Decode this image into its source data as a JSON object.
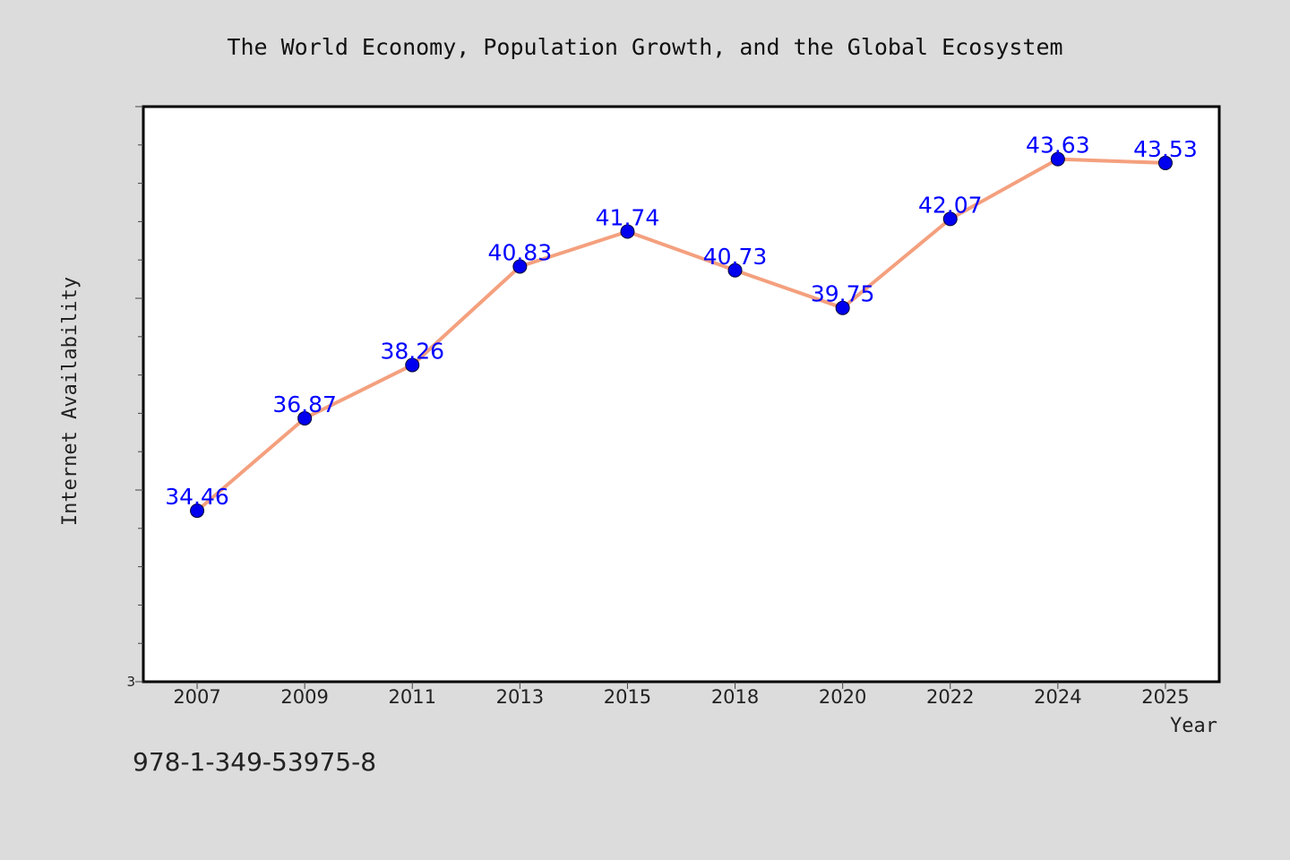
{
  "chart_data": {
    "type": "line",
    "title": "The World Economy, Population Growth, and the Global Ecosystem",
    "xlabel": "Year",
    "ylabel": "Internet Availability",
    "categories": [
      "2007",
      "2009",
      "2011",
      "2013",
      "2015",
      "2018",
      "2020",
      "2022",
      "2024",
      "2025"
    ],
    "series": [
      {
        "values": [
          34.46,
          36.87,
          38.26,
          40.83,
          41.74,
          40.73,
          39.75,
          42.07,
          43.63,
          43.53
        ]
      }
    ],
    "ylim": [
      30,
      45
    ],
    "y_tick_labels": [
      "3"
    ],
    "grid": false,
    "legend": "none",
    "colors": {
      "line": "#f4a07e",
      "marker": "#0000ee",
      "data_label": "#0000ff",
      "background": "#dcdcdc",
      "plot_background": "#ffffff"
    }
  },
  "footer": {
    "isbn": "978-1-349-53975-8"
  }
}
